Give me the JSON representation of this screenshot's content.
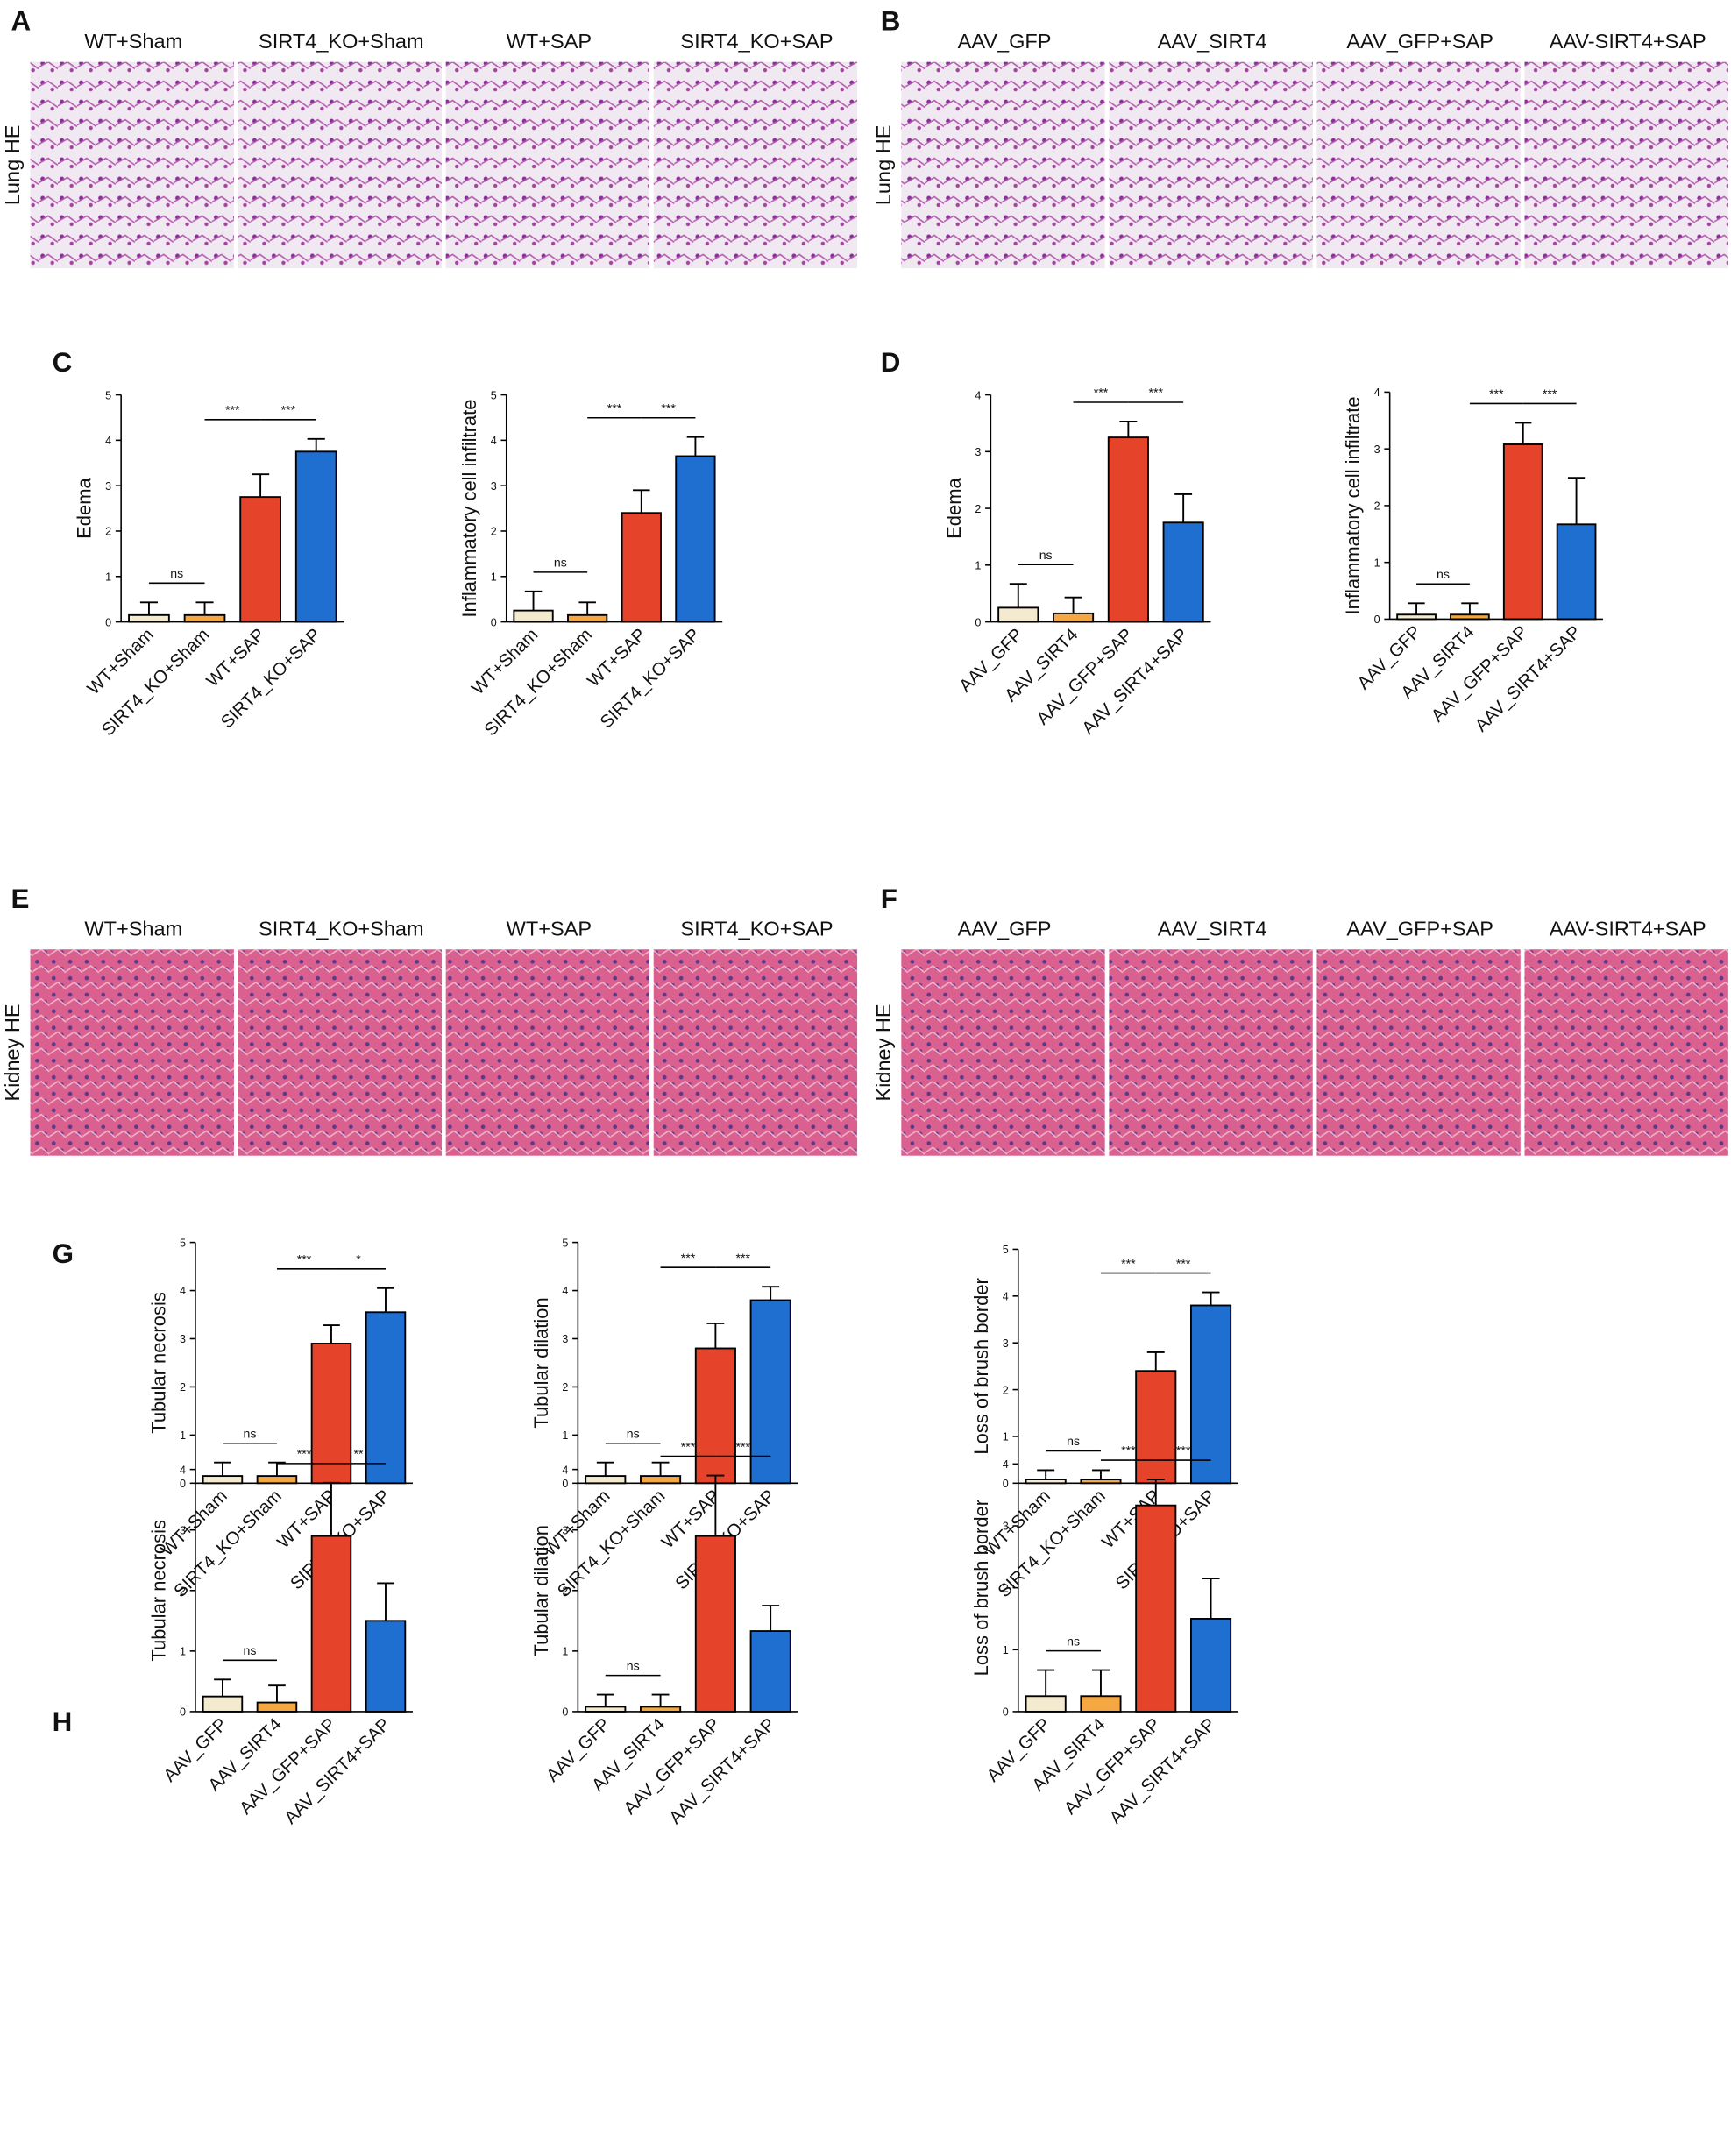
{
  "panel_letters": [
    "A",
    "B",
    "C",
    "D",
    "E",
    "F",
    "G",
    "H"
  ],
  "histology": [
    {
      "row_label": "Lung HE",
      "images": [
        "WT+Sham",
        "SIRT4_KO+Sham",
        "WT+SAP",
        "SIRT4_KO+SAP"
      ]
    },
    {
      "row_label": "Lung HE",
      "images": [
        "AAV_GFP",
        "AAV_SIRT4",
        "AAV_GFP+SAP",
        "AAV-SIRT4+SAP"
      ]
    },
    {
      "row_label": "Kidney HE",
      "images": [
        "WT+Sham",
        "SIRT4_KO+Sham",
        "WT+SAP",
        "SIRT4_KO+SAP"
      ]
    },
    {
      "row_label": "Kidney HE",
      "images": [
        "AAV_GFP",
        "AAV_SIRT4",
        "AAV_GFP+SAP",
        "AAV-SIRT4+SAP"
      ]
    }
  ],
  "chart_data": [
    {
      "type": "bar",
      "y_label": "Edema",
      "categories": [
        "WT+Sham",
        "SIRT4_KO+Sham",
        "WT+SAP",
        "SIRT4_KO+SAP"
      ],
      "values": [
        0.15,
        0.15,
        2.75,
        3.75
      ],
      "errors": [
        0.28,
        0.28,
        0.5,
        0.28
      ],
      "colors": [
        "#f3ead0",
        "#f5a742",
        "#e5432a",
        "#1f6fd0"
      ],
      "ylim": [
        0,
        5
      ],
      "yticks": [
        0,
        1,
        2,
        3,
        4,
        5
      ],
      "significance": [
        "ns",
        "***",
        "***"
      ]
    },
    {
      "type": "bar",
      "y_label": "Inflammatory cell infiltrate",
      "categories": [
        "WT+Sham",
        "SIRT4_KO+Sham",
        "WT+SAP",
        "SIRT4_KO+SAP"
      ],
      "values": [
        0.25,
        0.15,
        2.4,
        3.65
      ],
      "errors": [
        0.42,
        0.28,
        0.5,
        0.42
      ],
      "colors": [
        "#f3ead0",
        "#f5a742",
        "#e5432a",
        "#1f6fd0"
      ],
      "ylim": [
        0,
        5
      ],
      "yticks": [
        0,
        1,
        2,
        3,
        4,
        5
      ],
      "significance": [
        "ns",
        "***",
        "***"
      ]
    },
    {
      "type": "bar",
      "y_label": "Edema",
      "categories": [
        "AAV_GFP",
        "AAV_SIRT4",
        "AAV_GFP+SAP",
        "AAV_SIRT4+SAP"
      ],
      "values": [
        0.25,
        0.15,
        3.25,
        1.75
      ],
      "errors": [
        0.42,
        0.28,
        0.28,
        0.5
      ],
      "colors": [
        "#f3ead0",
        "#f5a742",
        "#e5432a",
        "#1f6fd0"
      ],
      "ylim": [
        0,
        4
      ],
      "yticks": [
        0,
        1,
        2,
        3,
        4
      ],
      "significance": [
        "ns",
        "***",
        "***"
      ]
    },
    {
      "type": "bar",
      "y_label": "Inflammatory cell infiltrate",
      "categories": [
        "AAV_GFP",
        "AAV_SIRT4",
        "AAV_GFP+SAP",
        "AAV_SIRT4+SAP"
      ],
      "values": [
        0.08,
        0.08,
        3.08,
        1.67
      ],
      "errors": [
        0.2,
        0.2,
        0.38,
        0.82
      ],
      "colors": [
        "#f3ead0",
        "#f5a742",
        "#e5432a",
        "#1f6fd0"
      ],
      "ylim": [
        0,
        4
      ],
      "yticks": [
        0,
        1,
        2,
        3,
        4
      ],
      "significance": [
        "ns",
        "***",
        "***"
      ]
    },
    {
      "type": "bar",
      "y_label": "Tubular necrosis",
      "categories": [
        "WT+Sham",
        "SIRT4_KO+Sham",
        "WT+SAP",
        "SIRT4_KO+SAP"
      ],
      "values": [
        0.15,
        0.15,
        2.9,
        3.55
      ],
      "errors": [
        0.28,
        0.28,
        0.38,
        0.5
      ],
      "colors": [
        "#f3ead0",
        "#f5a742",
        "#e5432a",
        "#1f6fd0"
      ],
      "ylim": [
        0,
        5
      ],
      "yticks": [
        0,
        1,
        2,
        3,
        4,
        5
      ],
      "significance": [
        "ns",
        "***",
        "*"
      ]
    },
    {
      "type": "bar",
      "y_label": "Tubular dilation",
      "categories": [
        "WT+Sham",
        "SIRT4_KO+Sham",
        "WT+SAP",
        "SIRT4_KO+SAP"
      ],
      "values": [
        0.15,
        0.15,
        2.8,
        3.8
      ],
      "errors": [
        0.28,
        0.28,
        0.52,
        0.28
      ],
      "colors": [
        "#f3ead0",
        "#f5a742",
        "#e5432a",
        "#1f6fd0"
      ],
      "ylim": [
        0,
        5
      ],
      "yticks": [
        0,
        1,
        2,
        3,
        4,
        5
      ],
      "significance": [
        "ns",
        "***",
        "***"
      ]
    },
    {
      "type": "bar",
      "y_label": "Loss of brush border",
      "categories": [
        "WT+Sham",
        "SIRT4_KO+Sham",
        "WT+SAP",
        "SIRT4_KO+SAP"
      ],
      "values": [
        0.08,
        0.08,
        2.4,
        3.8
      ],
      "errors": [
        0.2,
        0.2,
        0.4,
        0.28
      ],
      "colors": [
        "#f3ead0",
        "#f5a742",
        "#e5432a",
        "#1f6fd0"
      ],
      "ylim": [
        0,
        5
      ],
      "yticks": [
        0,
        1,
        2,
        3,
        4,
        5
      ],
      "significance": [
        "ns",
        "***",
        "***"
      ]
    },
    {
      "type": "bar",
      "y_label": "Tubular necrosis",
      "categories": [
        "AAV_GFP",
        "AAV_SIRT4",
        "AAV_GFP+SAP",
        "AAV_SIRT4+SAP"
      ],
      "values": [
        0.25,
        0.15,
        2.9,
        1.5
      ],
      "errors": [
        0.28,
        0.28,
        0.88,
        0.62
      ],
      "colors": [
        "#f3ead0",
        "#f5a742",
        "#e5432a",
        "#1f6fd0"
      ],
      "ylim": [
        0,
        4
      ],
      "yticks": [
        0,
        1,
        2,
        3,
        4
      ],
      "significance": [
        "ns",
        "***",
        "**"
      ]
    },
    {
      "type": "bar",
      "y_label": "Tubular dilation",
      "categories": [
        "AAV_GFP",
        "AAV_SIRT4",
        "AAV_GFP+SAP",
        "AAV_SIRT4+SAP"
      ],
      "values": [
        0.08,
        0.08,
        2.9,
        1.33
      ],
      "errors": [
        0.2,
        0.2,
        1.0,
        0.42
      ],
      "colors": [
        "#f3ead0",
        "#f5a742",
        "#e5432a",
        "#1f6fd0"
      ],
      "ylim": [
        0,
        4
      ],
      "yticks": [
        0,
        1,
        2,
        3,
        4
      ],
      "significance": [
        "ns",
        "***",
        "***"
      ]
    },
    {
      "type": "bar",
      "y_label": "Loss of brush border",
      "categories": [
        "AAV_GFP",
        "AAV_SIRT4",
        "AAV_GFP+SAP",
        "AAV_SIRT4+SAP"
      ],
      "values": [
        0.25,
        0.25,
        3.33,
        1.5
      ],
      "errors": [
        0.42,
        0.42,
        0.42,
        0.65
      ],
      "colors": [
        "#f3ead0",
        "#f5a742",
        "#e5432a",
        "#1f6fd0"
      ],
      "ylim": [
        0,
        4
      ],
      "yticks": [
        0,
        1,
        2,
        3,
        4
      ],
      "significance": [
        "ns",
        "***",
        "***"
      ]
    }
  ]
}
